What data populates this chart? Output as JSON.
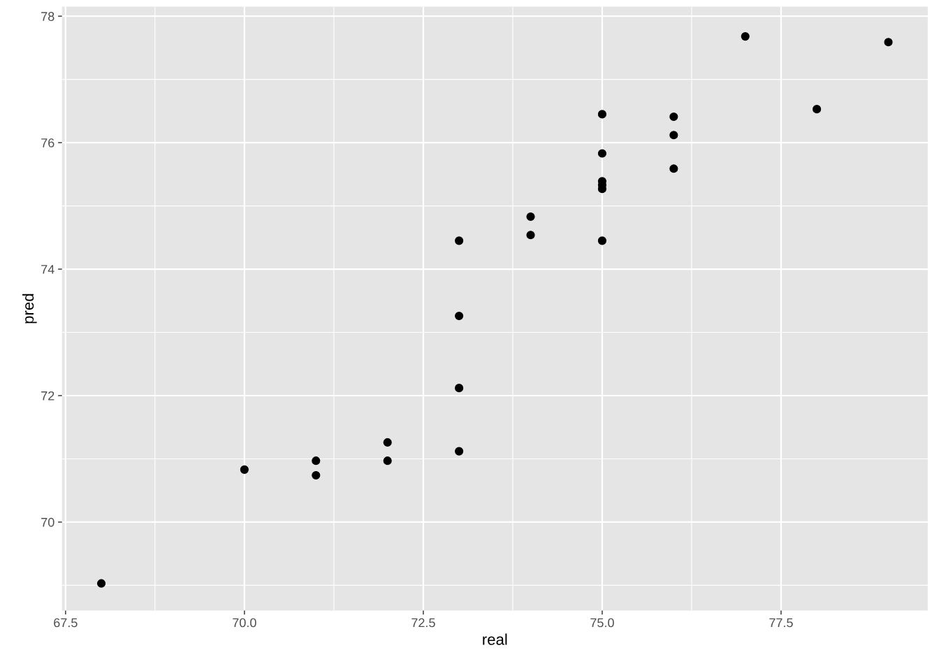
{
  "chart_data": {
    "type": "scatter",
    "xlabel": "real",
    "ylabel": "pred",
    "x": [
      68,
      70,
      71,
      71,
      72,
      72,
      73,
      73,
      73,
      73,
      74,
      74,
      75,
      75,
      75,
      75,
      75,
      75,
      76,
      76,
      76,
      77,
      78,
      79
    ],
    "series": [
      {
        "color": "#000000",
        "values": [
          69.03,
          70.83,
          70.97,
          70.74,
          71.26,
          70.97,
          71.12,
          72.12,
          73.26,
          74.45,
          74.83,
          74.54,
          74.45,
          75.27,
          75.33,
          75.39,
          75.83,
          76.45,
          76.41,
          76.12,
          75.59,
          77.68,
          76.53,
          77.59
        ]
      }
    ],
    "xlim": [
      67.45,
      79.55
    ],
    "ylim": [
      68.6,
      78.15
    ],
    "xticks": [
      {
        "value": 67.5,
        "label": "67.5"
      },
      {
        "value": 70,
        "label": "70.0"
      },
      {
        "value": 72.5,
        "label": "72.5"
      },
      {
        "value": 75,
        "label": "75.0"
      },
      {
        "value": 77.5,
        "label": "77.5"
      }
    ],
    "yticks": [
      70,
      72,
      74,
      76,
      78
    ],
    "grid": true,
    "marker": "circle",
    "legend": false
  }
}
